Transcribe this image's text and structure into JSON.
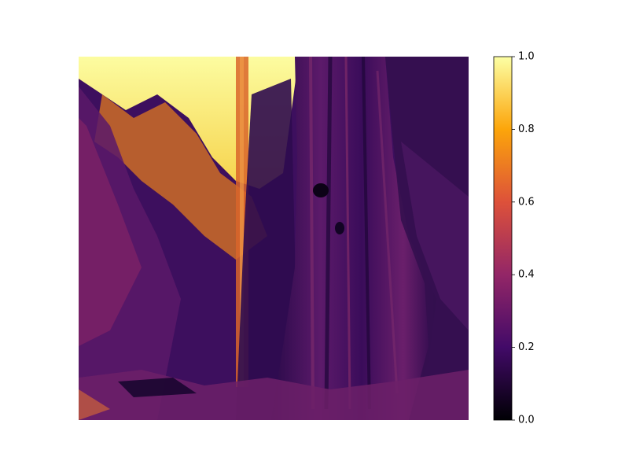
{
  "chart_data": {
    "type": "heatmap",
    "title": "",
    "xlabel": "",
    "ylabel": "",
    "axes_visible": false,
    "image_description": "pseudocolor-mapped grayscale photograph",
    "colormap": {
      "name": "inferno",
      "stops": [
        "#000004",
        "#420a68",
        "#932667",
        "#dd513a",
        "#fca50a",
        "#fcffa4"
      ]
    },
    "colorbar": {
      "location": "right",
      "vmin": 0.0,
      "vmax": 1.0,
      "ticks": [
        0.0,
        0.2,
        0.4,
        0.6,
        0.8,
        1.0
      ],
      "tick_labels": [
        "0.0",
        "0.2",
        "0.4",
        "0.6",
        "0.8",
        "1.0"
      ]
    }
  }
}
